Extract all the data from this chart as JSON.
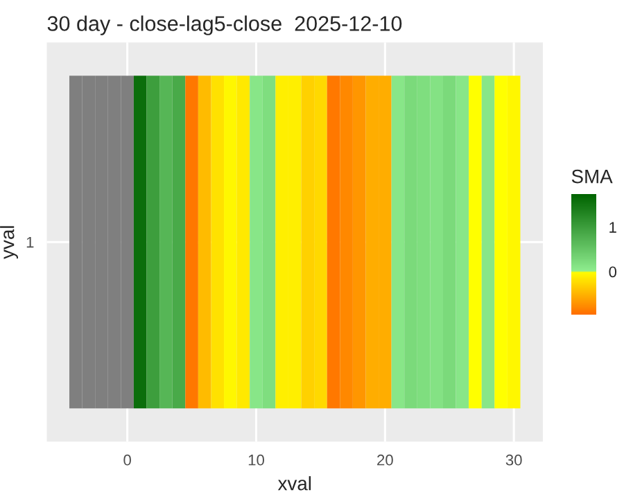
{
  "chart_data": {
    "type": "heatmap",
    "title": "30 day - close-lag5-close  2025-12-10",
    "xlabel": "xval",
    "ylabel": "yval",
    "clabel": "SMA",
    "x": [
      -4,
      -3,
      -2,
      -1,
      0,
      1,
      2,
      3,
      4,
      5,
      6,
      7,
      8,
      9,
      10,
      11,
      12,
      13,
      14,
      15,
      16,
      17,
      18,
      19,
      20,
      21,
      22,
      23,
      24,
      25,
      26,
      27,
      28,
      29,
      30
    ],
    "y_categories": [
      "1"
    ],
    "cells": [
      [
        null,
        null,
        null,
        null,
        null,
        1.6,
        1.0,
        0.7,
        0.85,
        -0.9,
        -0.45,
        -0.2,
        -0.05,
        -0.15,
        0.1,
        0.2,
        -0.1,
        -0.1,
        -0.3,
        -0.25,
        -0.9,
        -0.8,
        -0.7,
        -0.55,
        -0.55,
        0.1,
        0.25,
        0.2,
        0.15,
        0.25,
        0.1,
        0.0,
        0.1,
        0.0,
        -0.05
      ]
    ],
    "xlim": [
      -6.25,
      32.25
    ],
    "xticks": [
      0,
      10,
      20,
      30
    ],
    "clim": [
      -0.96,
      1.73
    ],
    "cticks": [
      0,
      1
    ],
    "grid": true
  }
}
